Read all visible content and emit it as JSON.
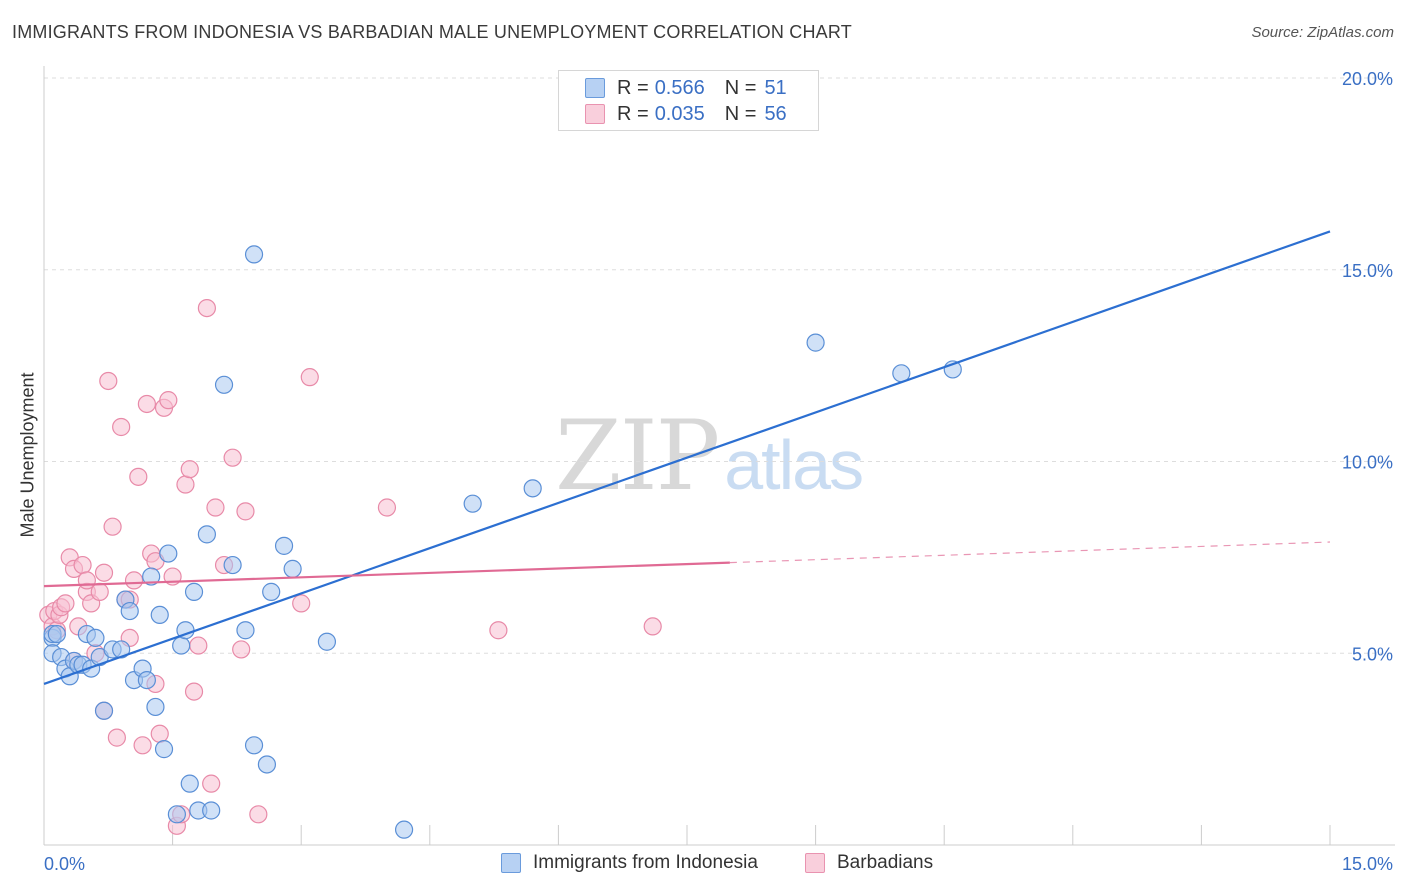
{
  "title": "IMMIGRANTS FROM INDONESIA VS BARBADIAN MALE UNEMPLOYMENT CORRELATION CHART",
  "source": "Source: ZipAtlas.com",
  "watermark": {
    "zip": "ZIP",
    "atlas": "atlas"
  },
  "colors": {
    "blue_fill": "#a9c8f0",
    "blue_stroke": "#5a8fd6",
    "blue_line": "#2c6fd1",
    "pink_fill": "#f7c0d2",
    "pink_stroke": "#e88aa8",
    "pink_line": "#e06a94",
    "axis_text": "#3a6fc4",
    "grid": "#dddddd"
  },
  "legend_top": [
    {
      "series": "indonesia",
      "r_label": "R =",
      "r_value": "0.566",
      "n_label": "N =",
      "n_value": "51"
    },
    {
      "series": "barbadians",
      "r_label": "R =",
      "r_value": "0.035",
      "n_label": "N =",
      "n_value": "56"
    }
  ],
  "legend_bottom": [
    {
      "series": "indonesia",
      "label": "Immigrants from Indonesia"
    },
    {
      "series": "barbadians",
      "label": "Barbadians"
    }
  ],
  "chart_data": {
    "type": "scatter",
    "title": "IMMIGRANTS FROM INDONESIA VS BARBADIAN MALE UNEMPLOYMENT CORRELATION CHART",
    "xlabel": "",
    "ylabel": "Male Unemployment",
    "xlim": [
      0,
      15
    ],
    "ylim": [
      0,
      20
    ],
    "x_tick_labels": [
      "0.0%",
      "15.0%"
    ],
    "y_ticks": [
      5,
      10,
      15,
      20
    ],
    "y_tick_labels": [
      "5.0%",
      "10.0%",
      "15.0%",
      "20.0%"
    ],
    "grid": true,
    "legend": "top-center",
    "series": [
      {
        "name": "Immigrants from Indonesia",
        "r": 0.566,
        "n": 51,
        "trend": {
          "x": [
            0,
            15
          ],
          "y": [
            4.2,
            16.0
          ],
          "dashed_from": null
        },
        "points": [
          [
            0.1,
            5.4
          ],
          [
            0.1,
            5.5
          ],
          [
            0.1,
            5.0
          ],
          [
            0.15,
            5.5
          ],
          [
            0.2,
            4.9
          ],
          [
            0.25,
            4.6
          ],
          [
            0.3,
            4.4
          ],
          [
            0.35,
            4.8
          ],
          [
            0.4,
            4.7
          ],
          [
            0.45,
            4.7
          ],
          [
            0.5,
            5.5
          ],
          [
            0.55,
            4.6
          ],
          [
            0.6,
            5.4
          ],
          [
            0.65,
            4.9
          ],
          [
            0.7,
            3.5
          ],
          [
            0.8,
            5.1
          ],
          [
            0.9,
            5.1
          ],
          [
            0.95,
            6.4
          ],
          [
            1.0,
            6.1
          ],
          [
            1.05,
            4.3
          ],
          [
            1.15,
            4.6
          ],
          [
            1.2,
            4.3
          ],
          [
            1.25,
            7.0
          ],
          [
            1.3,
            3.6
          ],
          [
            1.35,
            6.0
          ],
          [
            1.4,
            2.5
          ],
          [
            1.45,
            7.6
          ],
          [
            1.55,
            0.8
          ],
          [
            1.6,
            5.2
          ],
          [
            1.65,
            5.6
          ],
          [
            1.7,
            1.6
          ],
          [
            1.75,
            6.6
          ],
          [
            1.8,
            0.9
          ],
          [
            1.9,
            8.1
          ],
          [
            1.95,
            0.9
          ],
          [
            2.1,
            12.0
          ],
          [
            2.2,
            7.3
          ],
          [
            2.35,
            5.6
          ],
          [
            2.45,
            15.4
          ],
          [
            2.45,
            2.6
          ],
          [
            2.6,
            2.1
          ],
          [
            2.65,
            6.6
          ],
          [
            2.8,
            7.8
          ],
          [
            2.9,
            7.2
          ],
          [
            3.3,
            5.3
          ],
          [
            4.2,
            0.4
          ],
          [
            5.0,
            8.9
          ],
          [
            5.7,
            9.3
          ],
          [
            9.0,
            13.1
          ],
          [
            10.0,
            12.3
          ],
          [
            10.6,
            12.4
          ]
        ]
      },
      {
        "name": "Barbadians",
        "r": 0.035,
        "n": 56,
        "trend": {
          "x": [
            0,
            15
          ],
          "y": [
            6.75,
            7.9
          ],
          "dashed_from": 8.0
        },
        "points": [
          [
            0.05,
            6.0
          ],
          [
            0.1,
            5.7
          ],
          [
            0.12,
            6.1
          ],
          [
            0.15,
            5.6
          ],
          [
            0.18,
            6.0
          ],
          [
            0.2,
            6.2
          ],
          [
            0.25,
            6.3
          ],
          [
            0.3,
            7.5
          ],
          [
            0.35,
            7.2
          ],
          [
            0.4,
            5.7
          ],
          [
            0.45,
            7.3
          ],
          [
            0.5,
            6.6
          ],
          [
            0.5,
            6.9
          ],
          [
            0.55,
            6.3
          ],
          [
            0.6,
            5.0
          ],
          [
            0.65,
            6.6
          ],
          [
            0.7,
            3.5
          ],
          [
            0.7,
            7.1
          ],
          [
            0.75,
            12.1
          ],
          [
            0.8,
            8.3
          ],
          [
            0.85,
            2.8
          ],
          [
            0.9,
            10.9
          ],
          [
            0.95,
            6.4
          ],
          [
            1.0,
            5.4
          ],
          [
            1.05,
            6.9
          ],
          [
            1.1,
            9.6
          ],
          [
            1.15,
            2.6
          ],
          [
            1.2,
            11.5
          ],
          [
            1.25,
            7.6
          ],
          [
            1.3,
            4.2
          ],
          [
            1.3,
            7.4
          ],
          [
            1.35,
            2.9
          ],
          [
            1.4,
            11.4
          ],
          [
            1.45,
            11.6
          ],
          [
            1.5,
            7.0
          ],
          [
            1.55,
            0.5
          ],
          [
            1.6,
            0.8
          ],
          [
            1.65,
            9.4
          ],
          [
            1.7,
            9.8
          ],
          [
            1.75,
            4.0
          ],
          [
            1.8,
            5.2
          ],
          [
            1.9,
            14.0
          ],
          [
            1.95,
            1.6
          ],
          [
            2.0,
            8.8
          ],
          [
            2.1,
            7.3
          ],
          [
            2.2,
            10.1
          ],
          [
            2.3,
            5.1
          ],
          [
            2.35,
            8.7
          ],
          [
            2.5,
            0.8
          ],
          [
            3.0,
            6.3
          ],
          [
            3.1,
            12.2
          ],
          [
            4.0,
            8.8
          ],
          [
            5.3,
            5.6
          ],
          [
            7.1,
            5.7
          ],
          [
            0.35,
            4.8
          ],
          [
            1.0,
            6.4
          ]
        ]
      }
    ]
  }
}
